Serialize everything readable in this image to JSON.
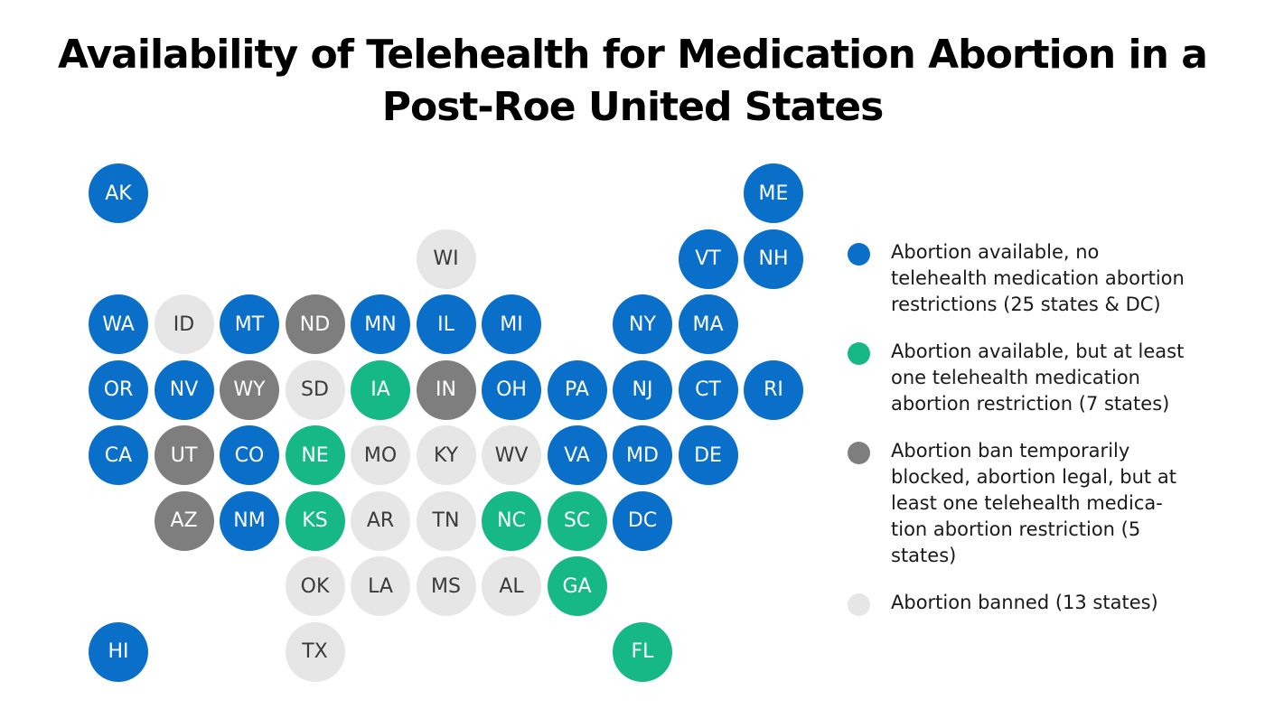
{
  "title_lines": [
    "Availability of Telehealth for Medication Abortion in a",
    "Post-Roe United States"
  ],
  "colors": {
    "available": "#0a6fc8",
    "restricted": "#16b985",
    "blocked": "#7e7e7e",
    "banned": "#e6e6e6"
  },
  "states": [
    {
      "code": "AK",
      "status": "available",
      "col": 0,
      "row": 0
    },
    {
      "code": "ME",
      "status": "available",
      "col": 10,
      "row": 0
    },
    {
      "code": "WI",
      "status": "banned",
      "col": 5,
      "row": 1
    },
    {
      "code": "VT",
      "status": "available",
      "col": 9,
      "row": 1
    },
    {
      "code": "NH",
      "status": "available",
      "col": 10,
      "row": 1
    },
    {
      "code": "WA",
      "status": "available",
      "col": 0,
      "row": 2
    },
    {
      "code": "ID",
      "status": "banned",
      "col": 1,
      "row": 2
    },
    {
      "code": "MT",
      "status": "available",
      "col": 2,
      "row": 2
    },
    {
      "code": "ND",
      "status": "blocked",
      "col": 3,
      "row": 2
    },
    {
      "code": "MN",
      "status": "available",
      "col": 4,
      "row": 2
    },
    {
      "code": "IL",
      "status": "available",
      "col": 5,
      "row": 2
    },
    {
      "code": "MI",
      "status": "available",
      "col": 6,
      "row": 2
    },
    {
      "code": "NY",
      "status": "available",
      "col": 8,
      "row": 2
    },
    {
      "code": "MA",
      "status": "available",
      "col": 9,
      "row": 2
    },
    {
      "code": "OR",
      "status": "available",
      "col": 0,
      "row": 3
    },
    {
      "code": "NV",
      "status": "available",
      "col": 1,
      "row": 3
    },
    {
      "code": "WY",
      "status": "blocked",
      "col": 2,
      "row": 3
    },
    {
      "code": "SD",
      "status": "banned",
      "col": 3,
      "row": 3
    },
    {
      "code": "IA",
      "status": "restricted",
      "col": 4,
      "row": 3
    },
    {
      "code": "IN",
      "status": "blocked",
      "col": 5,
      "row": 3
    },
    {
      "code": "OH",
      "status": "available",
      "col": 6,
      "row": 3
    },
    {
      "code": "PA",
      "status": "available",
      "col": 7,
      "row": 3
    },
    {
      "code": "NJ",
      "status": "available",
      "col": 8,
      "row": 3
    },
    {
      "code": "CT",
      "status": "available",
      "col": 9,
      "row": 3
    },
    {
      "code": "RI",
      "status": "available",
      "col": 10,
      "row": 3
    },
    {
      "code": "CA",
      "status": "available",
      "col": 0,
      "row": 4
    },
    {
      "code": "UT",
      "status": "blocked",
      "col": 1,
      "row": 4
    },
    {
      "code": "CO",
      "status": "available",
      "col": 2,
      "row": 4
    },
    {
      "code": "NE",
      "status": "restricted",
      "col": 3,
      "row": 4
    },
    {
      "code": "MO",
      "status": "banned",
      "col": 4,
      "row": 4
    },
    {
      "code": "KY",
      "status": "banned",
      "col": 5,
      "row": 4
    },
    {
      "code": "WV",
      "status": "banned",
      "col": 6,
      "row": 4
    },
    {
      "code": "VA",
      "status": "available",
      "col": 7,
      "row": 4
    },
    {
      "code": "MD",
      "status": "available",
      "col": 8,
      "row": 4
    },
    {
      "code": "DE",
      "status": "available",
      "col": 9,
      "row": 4
    },
    {
      "code": "AZ",
      "status": "blocked",
      "col": 1,
      "row": 5
    },
    {
      "code": "NM",
      "status": "available",
      "col": 2,
      "row": 5
    },
    {
      "code": "KS",
      "status": "restricted",
      "col": 3,
      "row": 5
    },
    {
      "code": "AR",
      "status": "banned",
      "col": 4,
      "row": 5
    },
    {
      "code": "TN",
      "status": "banned",
      "col": 5,
      "row": 5
    },
    {
      "code": "NC",
      "status": "restricted",
      "col": 6,
      "row": 5
    },
    {
      "code": "SC",
      "status": "restricted",
      "col": 7,
      "row": 5
    },
    {
      "code": "DC",
      "status": "available",
      "col": 8,
      "row": 5
    },
    {
      "code": "OK",
      "status": "banned",
      "col": 3,
      "row": 6
    },
    {
      "code": "LA",
      "status": "banned",
      "col": 4,
      "row": 6
    },
    {
      "code": "MS",
      "status": "banned",
      "col": 5,
      "row": 6
    },
    {
      "code": "AL",
      "status": "banned",
      "col": 6,
      "row": 6
    },
    {
      "code": "GA",
      "status": "restricted",
      "col": 7,
      "row": 6
    },
    {
      "code": "HI",
      "status": "available",
      "col": 0,
      "row": 7
    },
    {
      "code": "TX",
      "status": "banned",
      "col": 3,
      "row": 7
    },
    {
      "code": "FL",
      "status": "restricted",
      "col": 8,
      "row": 7
    }
  ],
  "legend": [
    {
      "status": "available",
      "lines": [
        "Abortion available, no",
        "telehealth medication abortion",
        "restrictions (25 states & DC)"
      ]
    },
    {
      "status": "restricted",
      "lines": [
        "Abortion available, but at least",
        "one telehealth medication",
        "abortion restriction (7 states)"
      ]
    },
    {
      "status": "blocked",
      "lines": [
        "Abortion ban temporarily",
        "blocked, abortion legal, but at",
        "least one telehealth medica-",
        "tion abortion restriction (5",
        "states)"
      ]
    },
    {
      "status": "banned",
      "lines": [
        "Abortion banned (13 states)"
      ]
    }
  ]
}
